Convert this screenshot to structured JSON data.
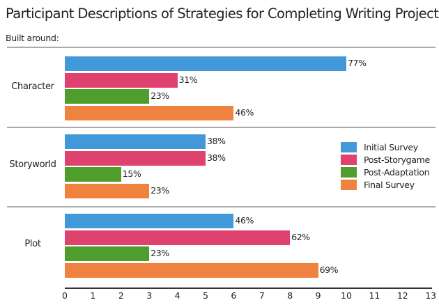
{
  "chart_data": {
    "type": "bar",
    "orientation": "horizontal",
    "title": "Participant Descriptions of Strategies for Completing Writing Projects",
    "subtitle": "Built around:",
    "xlabel": "",
    "ylabel": "",
    "xlim": [
      0,
      13
    ],
    "x_ticks": [
      "0",
      "1",
      "2",
      "3",
      "4",
      "5",
      "6",
      "7",
      "8",
      "9",
      "10",
      "11",
      "12",
      "13"
    ],
    "grid": false,
    "legend_position": "right-center",
    "categories": [
      "Character",
      "Storyworld",
      "Plot"
    ],
    "series": [
      {
        "name": "Initial Survey",
        "color": "#4299d9",
        "values": [
          10,
          5,
          6
        ],
        "labels": [
          "77%",
          "38%",
          "46%"
        ]
      },
      {
        "name": "Post-Storygame",
        "color": "#e0426f",
        "values": [
          4,
          5,
          8
        ],
        "labels": [
          "31%",
          "38%",
          "62%"
        ]
      },
      {
        "name": "Post-Adaptation",
        "color": "#4f9e2d",
        "values": [
          3,
          2,
          3
        ],
        "labels": [
          "23%",
          "15%",
          "23%"
        ]
      },
      {
        "name": "Final Survey",
        "color": "#ee823e",
        "values": [
          6,
          3,
          9
        ],
        "labels": [
          "46%",
          "23%",
          "69%"
        ]
      }
    ]
  }
}
